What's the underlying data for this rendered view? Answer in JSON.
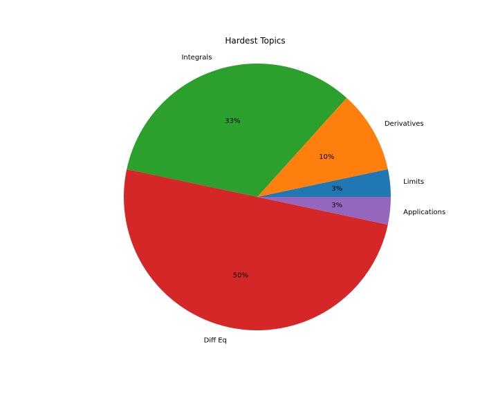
{
  "chart_data": {
    "type": "pie",
    "title": "Hardest Topics",
    "labels": [
      "Limits",
      "Derivatives",
      "Integrals",
      "Diff Eq",
      "Applications"
    ],
    "values": [
      3.33,
      10.0,
      33.33,
      50.0,
      3.33
    ],
    "percent_labels": [
      "3%",
      "10%",
      "33%",
      "50%",
      "3%"
    ],
    "colors": [
      "#1f77b4",
      "#ff7f0e",
      "#2ca02c",
      "#d62728",
      "#9467bd"
    ],
    "start_angle_deg": 0,
    "direction": "counterclockwise"
  }
}
